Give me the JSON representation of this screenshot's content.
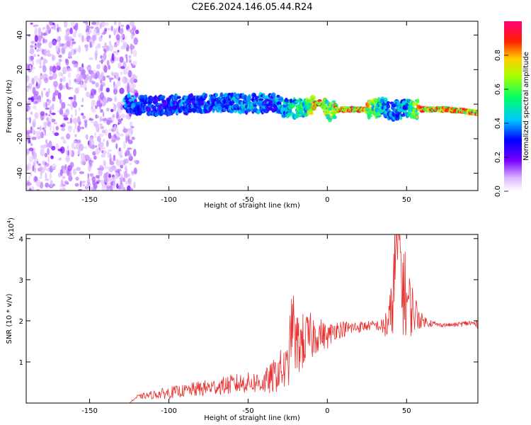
{
  "title": "C2E6.2024.146.05.44.R24",
  "colors": {
    "snr_line": "#e83030",
    "axis": "#000000",
    "spectrum_low": "#cc99ff",
    "spectrum_high": "#ff0055"
  },
  "chart_data": [
    {
      "type": "heatmap",
      "title": "",
      "xlabel": "Height of straight line (km)",
      "ylabel": "Frequency (Hz)",
      "xlim": [
        -190,
        95
      ],
      "ylim": [
        -50,
        48
      ],
      "xticks": [
        -150,
        -100,
        -50,
        0,
        50
      ],
      "xtick_labels": [
        "-150",
        "-100",
        "-50",
        "0",
        "50"
      ],
      "yticks": [
        -40,
        -20,
        0,
        20,
        40
      ],
      "ytick_labels": [
        "-40",
        "-20",
        "0",
        "20",
        "40"
      ],
      "colorbar": {
        "label": "Normalized spectral amplitude",
        "range": [
          0,
          1
        ],
        "ticks": [
          0,
          0.2,
          0.4,
          0.6,
          0.8
        ],
        "tick_labels": [
          "0.0",
          "0.2",
          "0.4",
          "0.6",
          "0.8"
        ]
      },
      "center_line": {
        "x": [
          -128,
          -110,
          -90,
          -70,
          -50,
          -35,
          -25,
          -15,
          -5,
          0,
          10,
          20,
          35,
          40,
          50,
          60,
          75,
          95
        ],
        "freq_hz": [
          0,
          -1,
          0,
          1,
          0,
          1,
          -3,
          -2,
          1,
          -4,
          -3,
          -3,
          -2,
          -4,
          -2,
          -3,
          -3,
          -5
        ],
        "amplitude": [
          0.4,
          0.35,
          0.4,
          0.4,
          0.45,
          0.4,
          0.5,
          0.6,
          0.9,
          0.7,
          0.9,
          0.95,
          0.5,
          0.4,
          0.5,
          0.95,
          0.95,
          0.9
        ]
      },
      "noise_region": {
        "x": [
          -190,
          -128
        ],
        "amplitude": 0.15
      }
    },
    {
      "type": "line",
      "title": "",
      "xlabel": "Height of straight line (km)",
      "ylabel": "SNR (10 * v/v)",
      "y_scale_label": "(x10",
      "y_scale_exponent": "4",
      "y_scale_close": ")",
      "xlim": [
        -190,
        95
      ],
      "ylim": [
        0,
        4.1
      ],
      "xticks": [
        -150,
        -100,
        -50,
        0,
        50
      ],
      "xtick_labels": [
        "-150",
        "-100",
        "-50",
        "0",
        "50"
      ],
      "yticks": [
        1,
        2,
        3,
        4
      ],
      "ytick_labels": [
        "1",
        "2",
        "3",
        "4"
      ],
      "series": [
        {
          "x": [
            -190,
            -125,
            -120,
            -110,
            -100,
            -90,
            -80,
            -70,
            -60,
            -50,
            -40,
            -35,
            -30,
            -25,
            -22,
            -20,
            -15,
            -10,
            -5,
            0,
            5,
            10,
            20,
            30,
            35,
            40,
            43,
            45,
            47,
            50,
            55,
            60,
            70,
            80,
            90,
            95
          ],
          "y": [
            0.0,
            0.0,
            0.15,
            0.2,
            0.25,
            0.3,
            0.35,
            0.4,
            0.45,
            0.5,
            0.5,
            0.6,
            0.8,
            0.8,
            2.1,
            1.4,
            1.5,
            1.6,
            1.7,
            1.6,
            1.8,
            1.8,
            1.85,
            1.9,
            1.85,
            2.0,
            3.5,
            4.1,
            3.0,
            2.5,
            2.2,
            2.0,
            1.9,
            1.9,
            1.95,
            1.9
          ],
          "amplitude": [
            0.0,
            0.0,
            0.05,
            0.1,
            0.15,
            0.15,
            0.2,
            0.2,
            0.25,
            0.25,
            0.3,
            0.4,
            0.5,
            0.6,
            0.8,
            0.8,
            0.7,
            0.6,
            0.4,
            0.3,
            0.25,
            0.2,
            0.15,
            0.1,
            0.2,
            0.8,
            1.2,
            1.4,
            1.3,
            1.0,
            0.5,
            0.15,
            0.05,
            0.05,
            0.08,
            0.1
          ]
        }
      ]
    }
  ]
}
